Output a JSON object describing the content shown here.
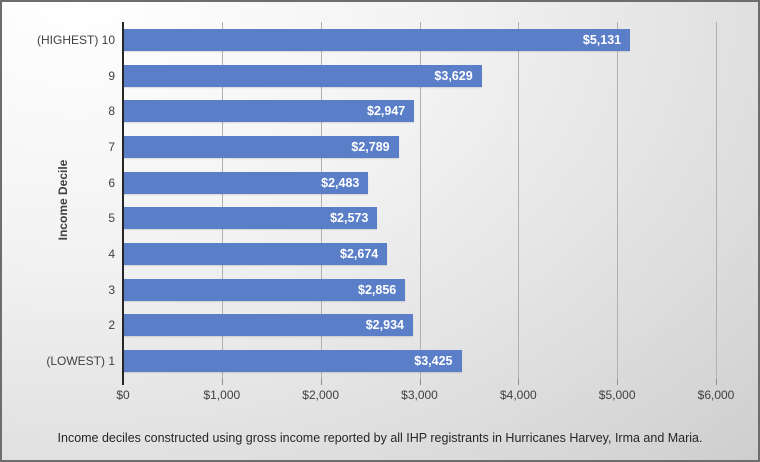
{
  "chart_data": {
    "type": "bar",
    "orientation": "horizontal",
    "title": "",
    "ylabel": "Income Decile",
    "xlabel": "",
    "categories": [
      "(HIGHEST) 10",
      "9",
      "8",
      "7",
      "6",
      "5",
      "4",
      "3",
      "2",
      "(LOWEST) 1"
    ],
    "values": [
      5131,
      3629,
      2947,
      2789,
      2483,
      2573,
      2674,
      2856,
      2934,
      3425
    ],
    "value_labels": [
      "$5,131",
      "$3,629",
      "$2,947",
      "$2,789",
      "$2,483",
      "$2,573",
      "$2,674",
      "$2,856",
      "$2,934",
      "$3,425"
    ],
    "x_tick_labels": [
      "$0",
      "$1,000",
      "$2,000",
      "$3,000",
      "$4,000",
      "$5,000",
      "$6,000"
    ],
    "x_tick_values": [
      0,
      1000,
      2000,
      3000,
      4000,
      5000,
      6000
    ],
    "xlim": [
      0,
      6000
    ],
    "grid": true,
    "legend": false,
    "data_label_position": "inside-end",
    "bar_color": "#5b7ec9",
    "data_label_color": "#ffffff",
    "axis_text_color": "#404040",
    "caption": "Income deciles constructed using gross income reported by all IHP registrants in Hurricanes Harvey, Irma and Maria."
  }
}
